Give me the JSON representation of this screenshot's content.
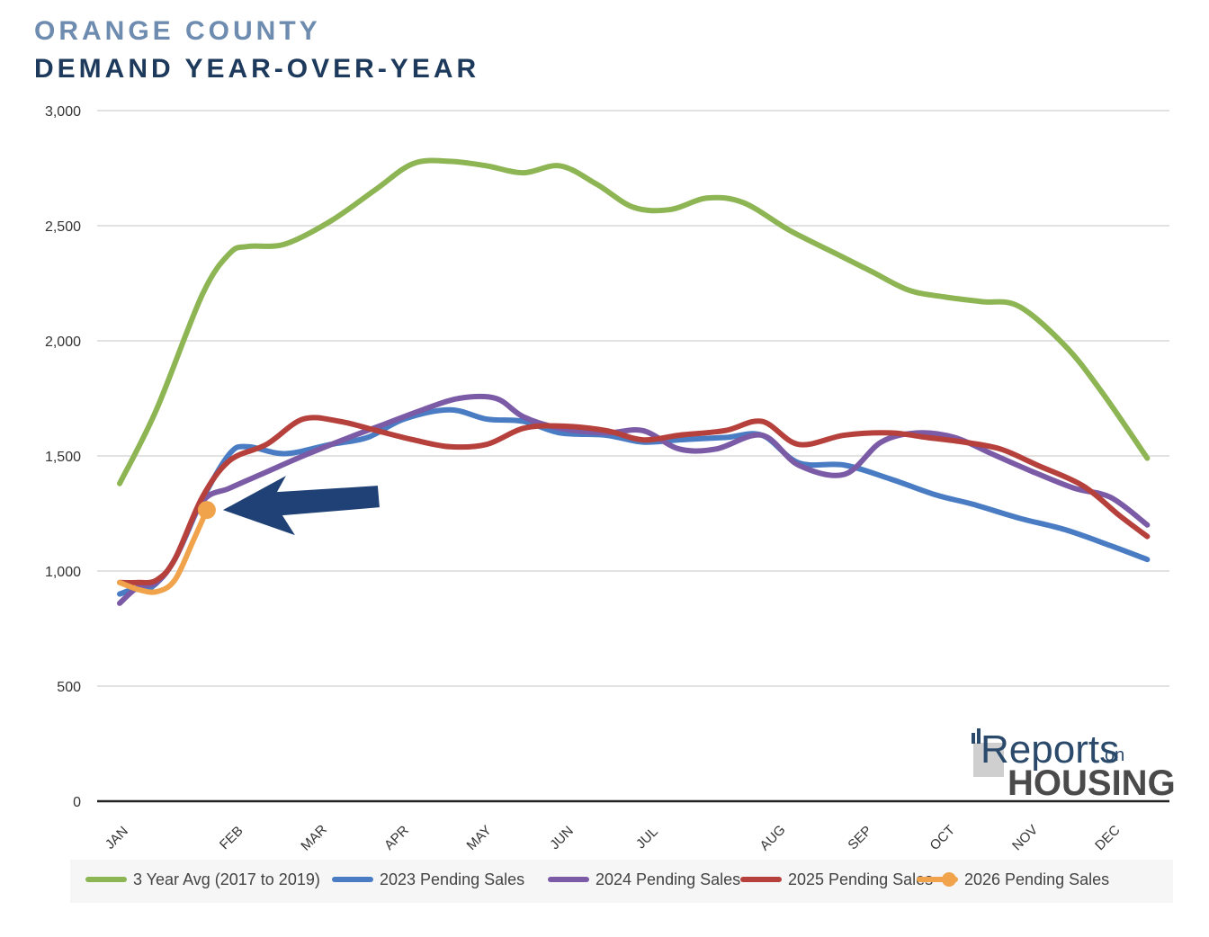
{
  "header": {
    "title_line1": "ORANGE COUNTY",
    "title_line2": "DEMAND YEAR-OVER-YEAR"
  },
  "logo": {
    "word1": "Reports",
    "word2": "on",
    "word3": "HOUSING"
  },
  "colors": {
    "avg": "#8db553",
    "y2023": "#4a7cc4",
    "y2024": "#7b5aa6",
    "y2025": "#b6413c",
    "y2026": "#f0a34a",
    "arrow": "#1f4175"
  },
  "chart_data": {
    "type": "line",
    "title": "ORANGE COUNTY DEMAND YEAR-OVER-YEAR",
    "xlabel": "",
    "ylabel": "",
    "ylim": [
      0,
      3000
    ],
    "yticks": [
      0,
      500,
      1000,
      1500,
      2000,
      2500,
      3000
    ],
    "ytick_labels": [
      "0",
      "500",
      "1,000",
      "1,500",
      "2,000",
      "2,500",
      "3,000"
    ],
    "categories": [
      "JAN",
      "FEB",
      "MAR",
      "APR",
      "MAY",
      "JUN",
      "JUL",
      "AUG",
      "SEP",
      "OCT",
      "NOV",
      "DEC"
    ],
    "legend_position": "bottom",
    "grid": true,
    "series": [
      {
        "name": "3 Year Avg (2017 to 2019)",
        "color_key": "avg",
        "x": [
          0,
          0.4,
          0.9,
          1.2,
          1.4,
          1.8,
          2.3,
          2.8,
          3.2,
          3.6,
          4.0,
          4.4,
          4.8,
          5.2,
          5.6,
          6.0,
          6.4,
          6.8,
          7.3,
          7.8,
          8.2,
          8.6,
          9.0,
          9.4,
          9.8,
          10.3,
          10.7,
          11.2
        ],
        "y": [
          1380,
          1700,
          2200,
          2380,
          2410,
          2420,
          2520,
          2660,
          2770,
          2780,
          2760,
          2730,
          2760,
          2680,
          2580,
          2570,
          2620,
          2600,
          2480,
          2380,
          2300,
          2220,
          2190,
          2170,
          2150,
          1980,
          1780,
          1490
        ]
      },
      {
        "name": "2023 Pending Sales",
        "color_key": "y2023",
        "x": [
          0,
          0.15,
          0.35,
          0.6,
          0.9,
          1.2,
          1.4,
          1.8,
          2.3,
          2.7,
          3.1,
          3.6,
          4.0,
          4.4,
          4.8,
          5.3,
          5.7,
          6.1,
          6.6,
          7.0,
          7.4,
          7.9,
          8.4,
          8.9,
          9.3,
          9.8,
          10.3,
          10.8,
          11.2
        ],
        "y": [
          900,
          920,
          930,
          1050,
          1310,
          1510,
          1540,
          1510,
          1550,
          1580,
          1660,
          1700,
          1660,
          1650,
          1600,
          1590,
          1560,
          1570,
          1580,
          1590,
          1470,
          1460,
          1400,
          1330,
          1290,
          1230,
          1180,
          1110,
          1050
        ]
      },
      {
        "name": "2024 Pending Sales",
        "color_key": "y2024",
        "x": [
          0,
          0.2,
          0.4,
          0.6,
          0.9,
          1.2,
          1.6,
          2.0,
          2.5,
          2.9,
          3.3,
          3.7,
          4.1,
          4.4,
          4.8,
          5.3,
          5.7,
          6.1,
          6.5,
          7.0,
          7.4,
          7.9,
          8.3,
          8.7,
          9.1,
          9.5,
          9.9,
          10.4,
          10.8,
          11.2
        ],
        "y": [
          860,
          930,
          950,
          1050,
          1300,
          1360,
          1430,
          1500,
          1580,
          1640,
          1700,
          1750,
          1750,
          1670,
          1620,
          1600,
          1610,
          1530,
          1530,
          1590,
          1460,
          1420,
          1560,
          1600,
          1580,
          1510,
          1440,
          1360,
          1320,
          1200
        ]
      },
      {
        "name": "2025 Pending Sales",
        "color_key": "y2025",
        "x": [
          0,
          0.2,
          0.4,
          0.6,
          0.9,
          1.2,
          1.6,
          2.0,
          2.4,
          2.8,
          3.2,
          3.6,
          4.0,
          4.4,
          4.8,
          5.3,
          5.7,
          6.1,
          6.6,
          7.0,
          7.4,
          7.9,
          8.4,
          8.8,
          9.2,
          9.6,
          10.0,
          10.5,
          10.9,
          11.2
        ],
        "y": [
          950,
          950,
          960,
          1050,
          1320,
          1480,
          1550,
          1660,
          1650,
          1610,
          1570,
          1540,
          1550,
          1620,
          1630,
          1610,
          1570,
          1590,
          1610,
          1650,
          1550,
          1590,
          1600,
          1580,
          1560,
          1530,
          1460,
          1370,
          1240,
          1150
        ]
      },
      {
        "name": "2026 Pending Sales",
        "color_key": "y2026",
        "x": [
          0,
          0.2,
          0.4,
          0.6,
          0.8,
          0.95
        ],
        "y": [
          950,
          920,
          910,
          960,
          1130,
          1265
        ]
      }
    ],
    "annotation": {
      "type": "arrow",
      "points_to_series": "2026 Pending Sales",
      "points_to_x": 0.95,
      "points_to_y": 1265
    }
  }
}
